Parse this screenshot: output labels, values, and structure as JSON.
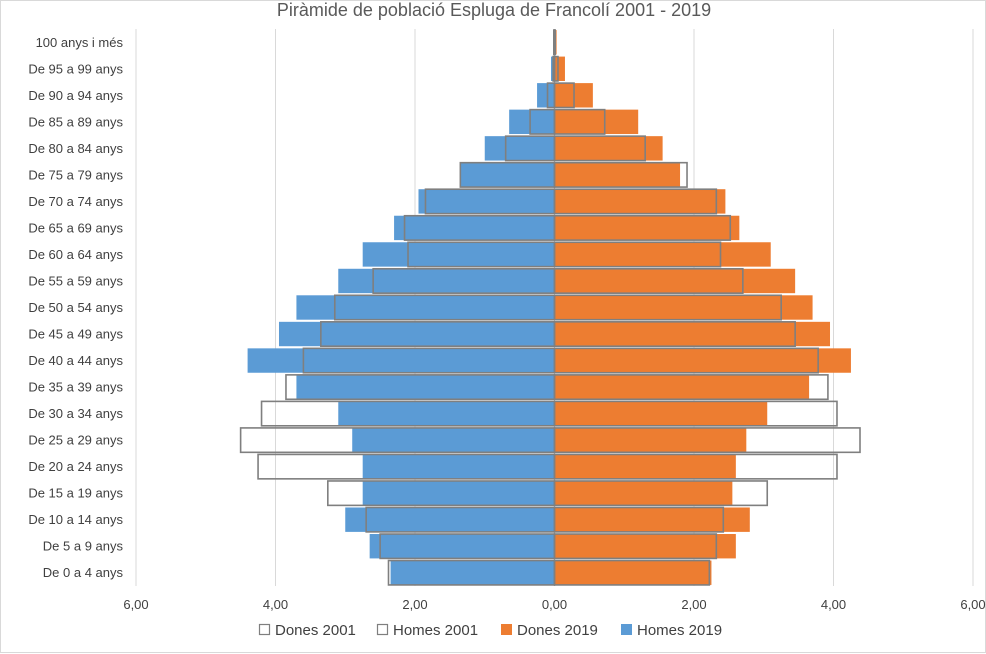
{
  "chart_data": {
    "type": "bar",
    "orientation": "horizontal",
    "subtype": "population-pyramid",
    "title": "Piràmide de població Espluga de Francolí 2001 - 2019",
    "categories": [
      "De 0 a 4 anys",
      "De 5 a 9 anys",
      "De 10 a 14 anys",
      "De 15 a 19 anys",
      "De 20 a 24 anys",
      "De 25 a 29 anys",
      "De 30 a 34 anys",
      "De 35 a 39 anys",
      "De 40 a 44 anys",
      "De 45 a 49 anys",
      "De 50 a 54 anys",
      "De 55 a 59 anys",
      "De 60 a 64 anys",
      "De 65 a 69 anys",
      "De 70 a 74 anys",
      "De 75 a 79 anys",
      "De 80 a 84 anys",
      "De 85 a 89 anys",
      "De 90 a 94 anys",
      "De 95 a 99 anys",
      "100 anys i més"
    ],
    "series": [
      {
        "name": "Homes 2019",
        "side": "left",
        "style": "filled",
        "color": "#5b9bd5",
        "values": [
          2.35,
          2.65,
          3.0,
          2.75,
          2.75,
          2.9,
          3.1,
          3.7,
          4.4,
          3.95,
          3.7,
          3.1,
          2.75,
          2.3,
          1.95,
          1.35,
          1.0,
          0.65,
          0.25,
          0.05,
          0.02
        ]
      },
      {
        "name": "Dones 2019",
        "side": "right",
        "style": "filled",
        "color": "#ed7d31",
        "values": [
          2.25,
          2.6,
          2.8,
          2.55,
          2.6,
          2.75,
          3.05,
          3.65,
          4.25,
          3.95,
          3.7,
          3.45,
          3.1,
          2.65,
          2.45,
          1.8,
          1.55,
          1.2,
          0.55,
          0.15,
          0.03
        ]
      },
      {
        "name": "Homes 2001",
        "side": "left",
        "style": "outline",
        "color": "#7f7f7f",
        "values": [
          2.38,
          2.5,
          2.7,
          3.25,
          4.25,
          4.5,
          4.2,
          3.85,
          3.6,
          3.35,
          3.15,
          2.6,
          2.1,
          2.15,
          1.85,
          1.35,
          0.7,
          0.35,
          0.1,
          0.02,
          0.01
        ]
      },
      {
        "name": "Dones 2001",
        "side": "right",
        "style": "outline",
        "color": "#7f7f7f",
        "values": [
          2.22,
          2.32,
          2.42,
          3.05,
          4.05,
          4.38,
          4.05,
          3.92,
          3.78,
          3.45,
          3.25,
          2.7,
          2.38,
          2.52,
          2.32,
          1.9,
          1.3,
          0.72,
          0.28,
          0.05,
          0.01
        ]
      }
    ],
    "x_ticks": [
      "6,00",
      "4,00",
      "2,00",
      "0,00",
      "2,00",
      "4,00",
      "6,00"
    ],
    "xlim": [
      -6,
      6
    ],
    "grid": true,
    "legend_position": "bottom",
    "legend": [
      {
        "label": "Dones 2001",
        "style": "outline",
        "color": "#7f7f7f"
      },
      {
        "label": "Homes 2001",
        "style": "outline",
        "color": "#7f7f7f"
      },
      {
        "label": "Dones 2019",
        "style": "filled",
        "color": "#ed7d31"
      },
      {
        "label": "Homes 2019",
        "style": "filled",
        "color": "#5b9bd5"
      }
    ]
  }
}
